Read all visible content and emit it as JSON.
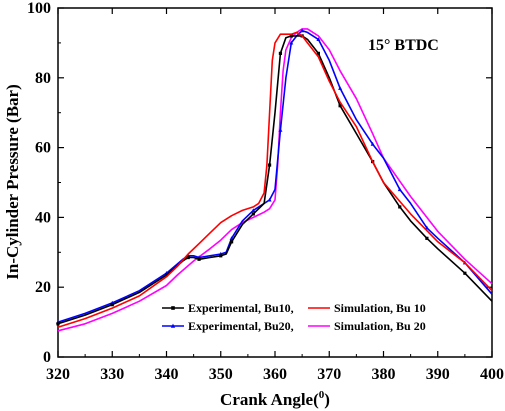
{
  "chart_data": {
    "type": "line",
    "annotation": "15° BTDC",
    "xlabel": "Crank Angle(",
    "xlabel_sup": "0",
    "xlabel_end": ")",
    "ylabel": "In-Cylinder Pressure (Bar)",
    "xlim": [
      320,
      400
    ],
    "ylim": [
      0,
      100
    ],
    "xticks": [
      320,
      330,
      340,
      350,
      360,
      370,
      380,
      390,
      400
    ],
    "yticks": [
      0,
      20,
      40,
      60,
      80,
      100
    ],
    "legend_position": "bottom-center",
    "series": [
      {
        "name": "Experimental, Bu10,",
        "color": "#000000",
        "marker": "square",
        "x": [
          320,
          325,
          330,
          335,
          340,
          343,
          344,
          345,
          346,
          348,
          350,
          351,
          352,
          354,
          356,
          358,
          359,
          360,
          361,
          362,
          363,
          364,
          365,
          366,
          368,
          370,
          372,
          375,
          378,
          380,
          383,
          385,
          388,
          390,
          395,
          400
        ],
        "y": [
          9.5,
          12,
          15,
          18.5,
          23.5,
          27.5,
          28.5,
          28.5,
          28,
          28.5,
          29,
          29.5,
          33,
          38,
          41,
          44,
          55,
          70,
          87,
          91.5,
          92,
          92,
          92,
          91,
          87,
          80,
          72,
          64,
          56,
          50,
          43,
          39,
          34,
          31,
          24,
          16
        ]
      },
      {
        "name": "Simulation,    Bu 10",
        "color": "#ff0000",
        "marker": "none",
        "x": [
          320,
          325,
          330,
          335,
          340,
          342,
          344,
          346,
          348,
          350,
          352,
          354,
          356,
          357,
          358,
          358.5,
          359,
          359.5,
          360,
          361,
          362,
          363,
          364,
          365,
          366,
          368,
          370,
          372,
          375,
          378,
          380,
          385,
          390,
          395,
          400
        ],
        "y": [
          8.5,
          11,
          14,
          17.5,
          23,
          26,
          29.5,
          32.5,
          35.5,
          38.5,
          40.5,
          42,
          43,
          44,
          47,
          55,
          70,
          85,
          90,
          92.5,
          92.5,
          92.5,
          93,
          92,
          90,
          86,
          79,
          73,
          66,
          56,
          50,
          41,
          33,
          27,
          19
        ]
      },
      {
        "name": "Experimental, Bu20,",
        "color": "#0000ff",
        "marker": "triangle",
        "x": [
          320,
          325,
          330,
          335,
          340,
          343,
          344,
          345,
          346,
          348,
          350,
          351,
          352,
          354,
          356,
          358,
          359,
          360,
          361,
          362,
          363,
          364,
          365,
          366,
          368,
          370,
          372,
          375,
          378,
          380,
          383,
          385,
          388,
          390,
          395,
          400
        ],
        "y": [
          10,
          12.5,
          15.5,
          19,
          24,
          28,
          29,
          29,
          28.5,
          29,
          29.5,
          30,
          34,
          39,
          42,
          44,
          45,
          48,
          65,
          80,
          90,
          92,
          93.5,
          93,
          91,
          85,
          77,
          68,
          61,
          57,
          48,
          44,
          37,
          34,
          27,
          18
        ]
      },
      {
        "name": "Simulation,     Bu 20",
        "color": "#ff00ff",
        "marker": "none",
        "x": [
          320,
          325,
          330,
          335,
          340,
          342,
          345,
          348,
          350,
          352,
          354,
          356,
          358,
          359,
          360,
          360.5,
          361,
          361.5,
          362,
          363,
          364,
          365,
          366,
          368,
          370,
          372,
          375,
          378,
          380,
          385,
          390,
          395,
          400
        ],
        "y": [
          7.5,
          9.5,
          12.5,
          16,
          20.5,
          23.5,
          27.5,
          31,
          33.5,
          36.5,
          38.5,
          40,
          41.5,
          42.5,
          45,
          55,
          70,
          82,
          88,
          91.5,
          93,
          94,
          94,
          92,
          88,
          82,
          74,
          64,
          57,
          46,
          36,
          28,
          21
        ]
      }
    ]
  }
}
